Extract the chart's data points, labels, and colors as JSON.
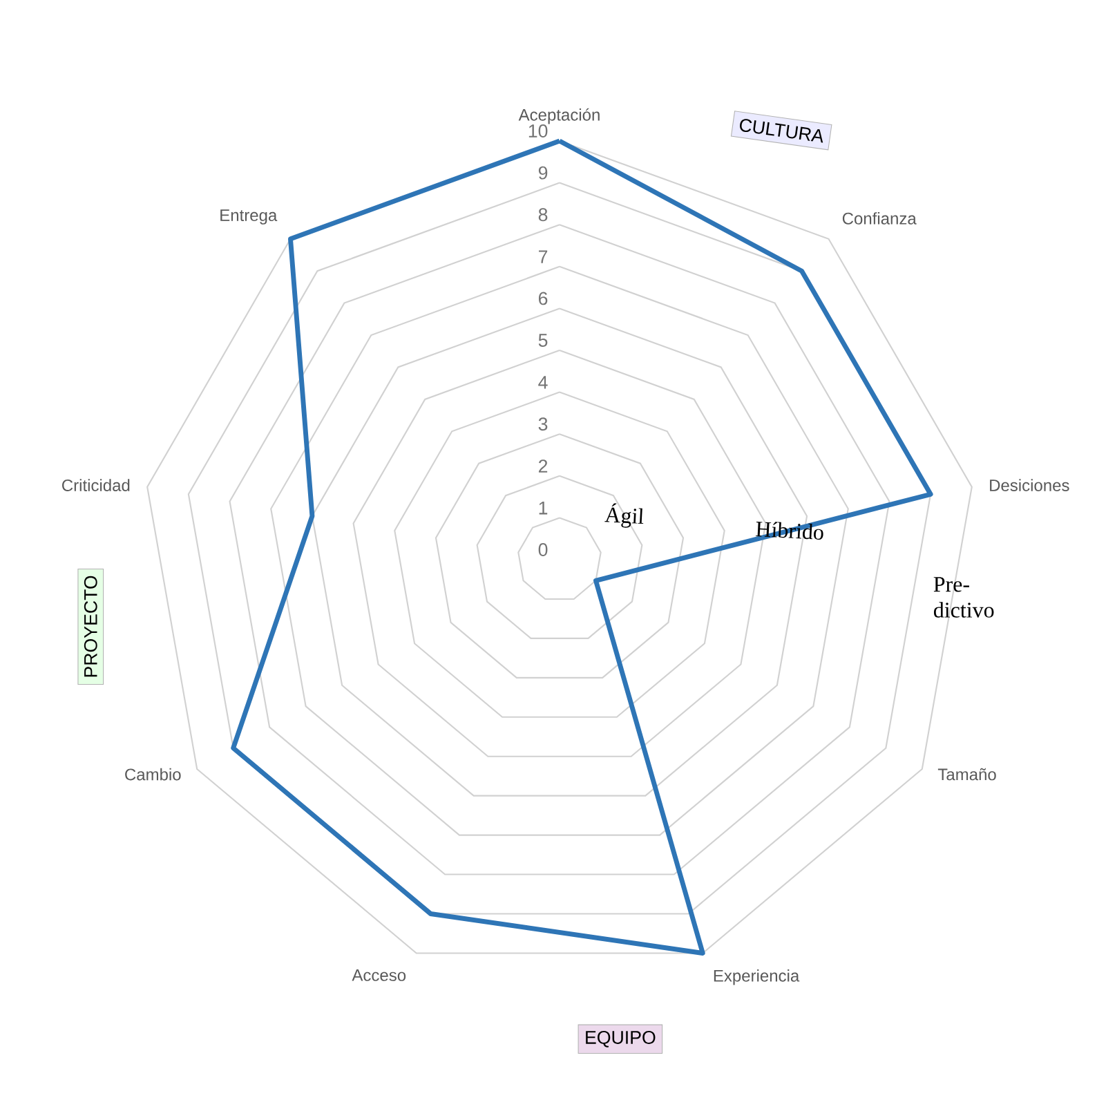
{
  "chart_data": {
    "type": "radar",
    "categories": [
      "Aceptación",
      "Confianza",
      "Desiciones",
      "Tamaño",
      "Experiencia",
      "Acceso",
      "Cambio",
      "Criticidad",
      "Entrega"
    ],
    "series": [
      {
        "color": "#2e75b6",
        "values": [
          10,
          9,
          9,
          1,
          10,
          9,
          9,
          6,
          10
        ]
      }
    ],
    "ylim": [
      0,
      10
    ],
    "yticks": [
      0,
      1,
      2,
      3,
      4,
      5,
      6,
      7,
      8,
      9,
      10
    ],
    "grid": true,
    "annotations": [
      "CULTURA",
      "EQUIPO",
      "PROYECTO",
      "Ágil",
      "Híbrido",
      "Pre-dictivo"
    ]
  }
}
